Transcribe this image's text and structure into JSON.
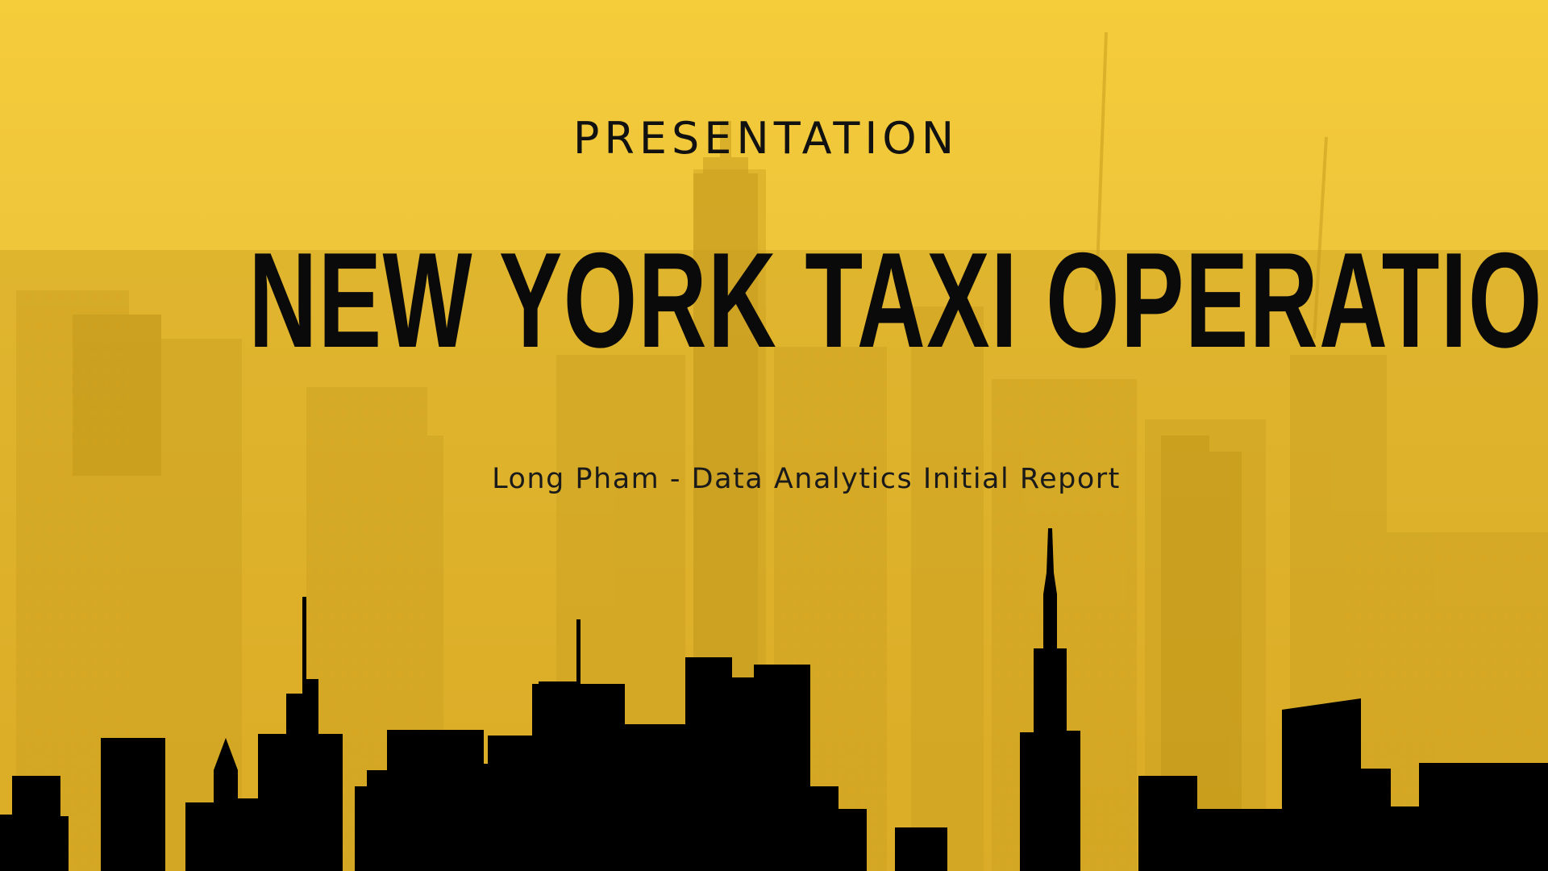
{
  "slide": {
    "eyebrow": "PRESENTATION",
    "title": "NEW YORK TAXI OPERATION",
    "subtitle": "Long Pham - Data Analytics Initial Report"
  },
  "colors": {
    "background_yellow": "#e9bd2f",
    "building_tint": "#c99a1c",
    "silhouette": "#000000",
    "text": "#0a0a0a"
  }
}
